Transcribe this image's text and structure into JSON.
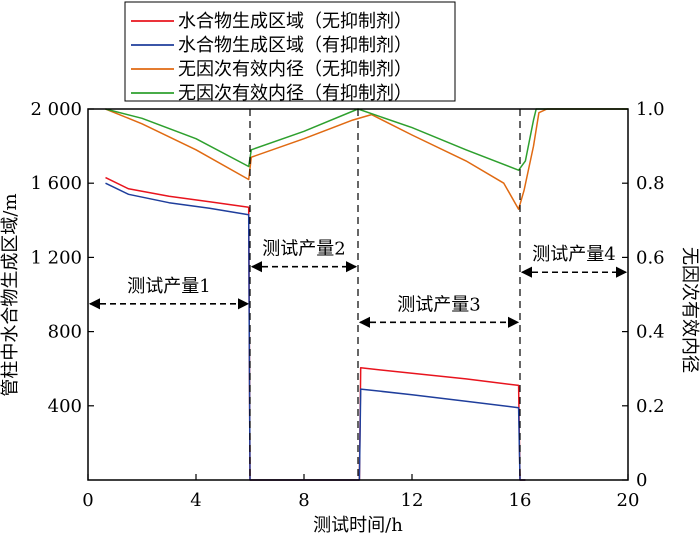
{
  "chart_data": {
    "type": "line",
    "xlabel": "测试时间/h",
    "ylabel": "管柱中水合物生成区域/m",
    "y2label": "无因次有效内径",
    "xlim": [
      0,
      20
    ],
    "ylim": [
      0,
      2000
    ],
    "y2lim": [
      0,
      1.0
    ],
    "xticks": [
      0,
      4,
      8,
      12,
      16,
      20
    ],
    "xtick_labels": [
      "0",
      "4",
      "8",
      "12",
      "16",
      "20"
    ],
    "yticks": [
      400,
      800,
      1200,
      1600,
      2000
    ],
    "ytick_labels": [
      "400",
      "800",
      "1 200",
      "1 600",
      "2 000"
    ],
    "y2ticks": [
      0,
      0.2,
      0.4,
      0.6,
      0.8,
      1.0
    ],
    "y2tick_labels": [
      "0",
      "0.2",
      "0.4",
      "0.6",
      "0.8",
      "1.0"
    ],
    "grid": false,
    "legend_position": "top-center",
    "series": [
      {
        "name": "水合物生成区域（无抑制剂）",
        "color": "#e8141e",
        "axis": "left",
        "points": [
          [
            0.65,
            1630
          ],
          [
            1.5,
            1570
          ],
          [
            3,
            1530
          ],
          [
            4.5,
            1500
          ],
          [
            5.95,
            1470
          ],
          [
            6.0,
            0
          ],
          [
            10.05,
            0
          ],
          [
            10.1,
            605
          ],
          [
            12,
            575
          ],
          [
            14,
            545
          ],
          [
            15.95,
            510
          ],
          [
            16.0,
            0
          ],
          [
            16.2,
            0
          ]
        ]
      },
      {
        "name": "水合物生成区域（有抑制剂）",
        "color": "#1f3e9c",
        "axis": "left",
        "points": [
          [
            0.65,
            1600
          ],
          [
            1.5,
            1540
          ],
          [
            3,
            1495
          ],
          [
            4.5,
            1465
          ],
          [
            5.95,
            1430
          ],
          [
            6.0,
            0
          ],
          [
            10.05,
            0
          ],
          [
            10.1,
            490
          ],
          [
            12,
            460
          ],
          [
            14,
            425
          ],
          [
            15.95,
            390
          ],
          [
            16.0,
            0
          ],
          [
            16.2,
            0
          ]
        ]
      },
      {
        "name": "无因次有效内径（无抑制剂）",
        "color": "#e06a12",
        "axis": "right",
        "points": [
          [
            0.65,
            1.0
          ],
          [
            2,
            0.96
          ],
          [
            4,
            0.89
          ],
          [
            5.95,
            0.81
          ],
          [
            6.05,
            0.87
          ],
          [
            8,
            0.92
          ],
          [
            9.8,
            0.97
          ],
          [
            10.5,
            0.985
          ],
          [
            12,
            0.93
          ],
          [
            14,
            0.86
          ],
          [
            15.4,
            0.8
          ],
          [
            15.95,
            0.73
          ],
          [
            16.15,
            0.78
          ],
          [
            16.5,
            0.9
          ],
          [
            16.7,
            0.99
          ],
          [
            17,
            1.0
          ],
          [
            20,
            1.0
          ]
        ]
      },
      {
        "name": "无因次有效内径（有抑制剂）",
        "color": "#2ea02e",
        "axis": "right",
        "points": [
          [
            0.65,
            1.0
          ],
          [
            2,
            0.975
          ],
          [
            4,
            0.92
          ],
          [
            5.95,
            0.845
          ],
          [
            6.05,
            0.89
          ],
          [
            8,
            0.94
          ],
          [
            10,
            1.0
          ],
          [
            12,
            0.95
          ],
          [
            14,
            0.89
          ],
          [
            15.95,
            0.835
          ],
          [
            16.2,
            0.86
          ],
          [
            16.5,
            0.97
          ],
          [
            16.6,
            1.0
          ],
          [
            20,
            1.0
          ]
        ]
      }
    ],
    "vertical_lines": [
      6,
      10,
      16
    ],
    "annotations": [
      {
        "text": "测试产量1",
        "x_from": 0,
        "x_to": 6,
        "y": 950
      },
      {
        "text": "测试产量2",
        "x_from": 6,
        "x_to": 10,
        "y": 1150
      },
      {
        "text": "测试产量3",
        "x_from": 10,
        "x_to": 16,
        "y": 850
      },
      {
        "text": "测试产量4",
        "x_from": 16,
        "x_to": 20,
        "y": 1120
      }
    ]
  }
}
